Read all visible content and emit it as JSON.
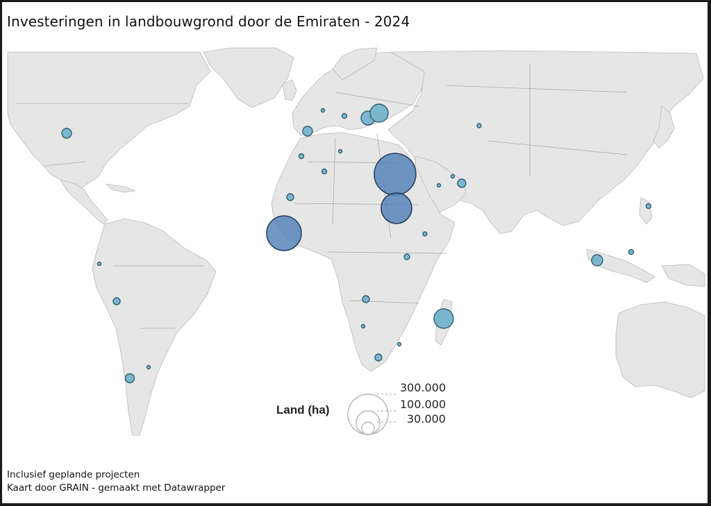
{
  "title": "Investeringen in landbouwgrond door de Emiraten - 2024",
  "legend": {
    "title": "Land (ha)",
    "levels": [
      "300.000",
      "100.000",
      "30.000"
    ]
  },
  "footer": {
    "line1": "Inclusief geplande projecten",
    "line2": "Kaart door GRAIN - gemaakt met Datawrapper"
  },
  "colors": {
    "small_bubble": "#7bb6cf",
    "large_bubble": "#4f7fb6",
    "land": "#e6e6e6"
  }
}
